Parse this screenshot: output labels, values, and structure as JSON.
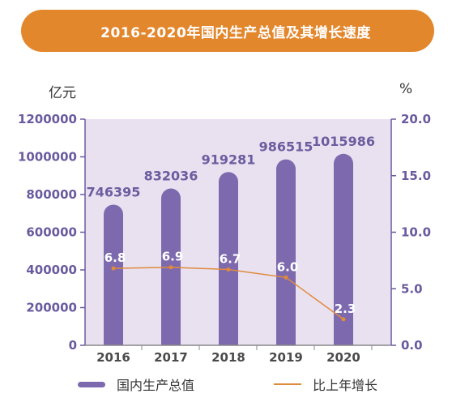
{
  "banner": {
    "title": "2016-2020年国内生产总值及其增长速度",
    "color": "#e3872d"
  },
  "units": {
    "left": "亿元",
    "right": "%"
  },
  "legend": {
    "gdp": "国内生产总值",
    "growth": "比上年增长"
  },
  "colors": {
    "plot_bg": "#e9e1f0",
    "bar": "#7d6aae",
    "line": "#e08a3c",
    "axis_text": "#6a5a9e"
  },
  "chart_data": {
    "type": "bar",
    "categories": [
      "2016",
      "2017",
      "2018",
      "2019",
      "2020"
    ],
    "series": [
      {
        "name": "国内生产总值",
        "type": "bar",
        "axis": "left",
        "values": [
          746395,
          832036,
          919281,
          986515,
          1015986
        ]
      },
      {
        "name": "比上年增长",
        "type": "line",
        "axis": "right",
        "values": [
          6.8,
          6.9,
          6.7,
          6.0,
          2.3
        ]
      }
    ],
    "y_left": {
      "range": [
        0,
        1200000
      ],
      "ticks": [
        "0",
        "200000",
        "400000",
        "600000",
        "800000",
        "1000000",
        "1200000"
      ]
    },
    "y_right": {
      "range": [
        0,
        20
      ],
      "ticks": [
        "0.0",
        "5.0",
        "10.0",
        "15.0",
        "20.0"
      ]
    },
    "bar_labels": [
      "746395",
      "832036",
      "919281",
      "986515",
      "1015986"
    ],
    "point_labels": [
      "6.8",
      "6.9",
      "6.7",
      "6.0",
      "2.3"
    ]
  }
}
